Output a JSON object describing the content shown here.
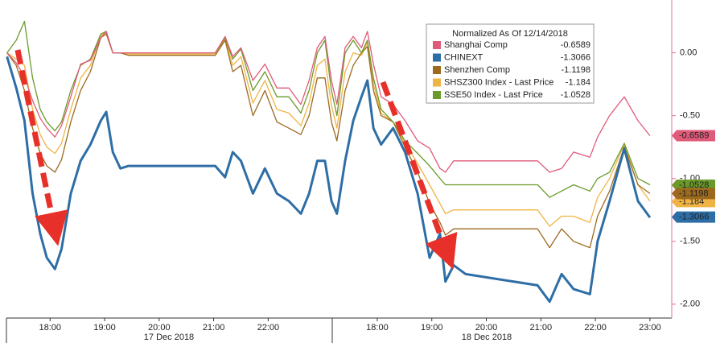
{
  "chart_data": {
    "type": "line",
    "legend_title": "Normalized As Of 12/14/2018",
    "date_labels": [
      "17 Dec 2018",
      "18 Dec 2018"
    ],
    "x": [
      -0.79,
      -0.62,
      -0.47,
      -0.32,
      -0.18,
      -0.06,
      0.09,
      0.21,
      0.38,
      0.56,
      0.74,
      0.93,
      1.03,
      1.15,
      1.29,
      1.44,
      3.03,
      3.21,
      3.35,
      3.5,
      3.72,
      3.94,
      4.16,
      4.38,
      4.6,
      4.75,
      4.9,
      5.04,
      5.16,
      5.26,
      5.41,
      5.56,
      5.71,
      5.82,
      5.93,
      6.07,
      6.29,
      6.51,
      6.74,
      6.96,
      7.15,
      7.25,
      7.4,
      7.62,
      8.94,
      9.16,
      9.38,
      9.6,
      9.9,
      10.04,
      10.26,
      10.53,
      10.78,
      11.0
    ],
    "xlim": [
      -0.8,
      11.4
    ],
    "xticks": [
      {
        "value": 0,
        "label": "18:00"
      },
      {
        "value": 1,
        "label": "19:00"
      },
      {
        "value": 2,
        "label": "20:00"
      },
      {
        "value": 3,
        "label": "21:00"
      },
      {
        "value": 4,
        "label": "22:00"
      },
      {
        "value": 6,
        "label": "18:00"
      },
      {
        "value": 7,
        "label": "19:00"
      },
      {
        "value": 8,
        "label": "20:00"
      },
      {
        "value": 9,
        "label": "21:00"
      },
      {
        "value": 10,
        "label": "22:00"
      },
      {
        "value": 11,
        "label": "23:00"
      }
    ],
    "ylim": [
      -2.11,
      0.42
    ],
    "yticks": [
      {
        "value": 0,
        "label": "0.00"
      },
      {
        "value": -0.5,
        "label": "-0.50"
      },
      {
        "value": -1,
        "label": "-1.00"
      },
      {
        "value": -1.5,
        "label": "-1.50"
      },
      {
        "value": -2,
        "label": "-2.00"
      }
    ],
    "series": [
      {
        "name": "Shanghai Comp",
        "color": "#e05a7a",
        "last": -0.6589,
        "values": [
          0.0,
          -0.08,
          -0.19,
          -0.38,
          -0.52,
          -0.6,
          -0.67,
          -0.58,
          -0.35,
          -0.09,
          -0.06,
          0.12,
          0.17,
          0.0,
          0.0,
          0.0,
          0.0,
          0.13,
          -0.03,
          0.04,
          -0.22,
          -0.09,
          -0.28,
          -0.28,
          -0.41,
          -0.22,
          0.04,
          0.13,
          -0.22,
          -0.41,
          0.04,
          0.13,
          0.04,
          0.17,
          -0.09,
          -0.35,
          -0.41,
          -0.54,
          -0.7,
          -0.76,
          -0.92,
          -0.95,
          -0.86,
          -0.86,
          -0.86,
          -0.95,
          -0.92,
          -0.79,
          -0.83,
          -0.67,
          -0.5,
          -0.35,
          -0.54,
          -0.66
        ]
      },
      {
        "name": "CHINEXT",
        "color": "#2e6ea6",
        "last": -1.3066,
        "values": [
          -0.03,
          -0.28,
          -0.54,
          -1.12,
          -1.44,
          -1.63,
          -1.72,
          -1.56,
          -1.12,
          -0.86,
          -0.73,
          -0.54,
          -0.47,
          -0.79,
          -0.92,
          -0.9,
          -0.9,
          -0.99,
          -0.79,
          -0.86,
          -1.12,
          -0.92,
          -1.12,
          -1.18,
          -1.28,
          -1.12,
          -0.86,
          -0.86,
          -1.18,
          -1.28,
          -0.86,
          -0.54,
          -0.35,
          -0.22,
          -0.6,
          -0.73,
          -0.6,
          -0.79,
          -1.12,
          -1.63,
          -1.44,
          -1.82,
          -1.69,
          -1.76,
          -1.85,
          -1.98,
          -1.76,
          -1.88,
          -1.92,
          -1.5,
          -1.18,
          -0.76,
          -1.18,
          -1.31
        ]
      },
      {
        "name": "Shenzhen Comp",
        "color": "#9c6a1e",
        "last": -1.1198,
        "values": [
          0.0,
          -0.1,
          -0.3,
          -0.6,
          -0.8,
          -0.9,
          -0.95,
          -0.85,
          -0.55,
          -0.3,
          -0.15,
          0.12,
          0.15,
          0.0,
          0.0,
          -0.02,
          -0.02,
          0.1,
          -0.15,
          -0.1,
          -0.5,
          -0.3,
          -0.55,
          -0.6,
          -0.65,
          -0.5,
          -0.2,
          -0.2,
          -0.55,
          -0.7,
          -0.3,
          -0.1,
          0.0,
          0.05,
          -0.3,
          -0.5,
          -0.55,
          -0.75,
          -0.95,
          -1.2,
          -1.35,
          -1.45,
          -1.4,
          -1.4,
          -1.4,
          -1.55,
          -1.4,
          -1.5,
          -1.55,
          -1.3,
          -1.1,
          -0.75,
          -1.05,
          -1.12
        ]
      },
      {
        "name": "SHSZ300 Index - Last Price",
        "color": "#f0b445",
        "last": -1.184,
        "values": [
          0.0,
          -0.05,
          -0.1,
          -0.45,
          -0.65,
          -0.75,
          -0.8,
          -0.72,
          -0.45,
          -0.2,
          -0.1,
          0.14,
          0.16,
          0.0,
          0.0,
          -0.01,
          -0.01,
          0.11,
          -0.1,
          -0.03,
          -0.4,
          -0.22,
          -0.45,
          -0.48,
          -0.58,
          -0.4,
          -0.1,
          -0.05,
          -0.42,
          -0.6,
          -0.15,
          0.0,
          -0.02,
          0.08,
          -0.25,
          -0.48,
          -0.55,
          -0.72,
          -0.88,
          -1.05,
          -1.2,
          -1.28,
          -1.25,
          -1.25,
          -1.25,
          -1.38,
          -1.3,
          -1.3,
          -1.35,
          -1.15,
          -1.0,
          -0.73,
          -1.05,
          -1.18
        ]
      },
      {
        "name": "SSE50 Index - Last Price",
        "color": "#6a9a2a",
        "last": -1.0528,
        "values": [
          0.0,
          0.1,
          0.25,
          -0.2,
          -0.45,
          -0.55,
          -0.62,
          -0.55,
          -0.3,
          -0.1,
          -0.05,
          0.15,
          0.17,
          0.0,
          0.0,
          0.0,
          0.0,
          0.12,
          -0.05,
          0.03,
          -0.3,
          -0.15,
          -0.35,
          -0.35,
          -0.48,
          -0.3,
          0.0,
          0.1,
          -0.3,
          -0.5,
          0.0,
          0.1,
          0.0,
          0.1,
          -0.2,
          -0.45,
          -0.55,
          -0.7,
          -0.8,
          -0.9,
          -1.0,
          -1.05,
          -1.05,
          -1.05,
          -1.05,
          -1.15,
          -1.1,
          -1.05,
          -1.1,
          -1.0,
          -0.95,
          -0.72,
          -1.0,
          -1.05
        ]
      }
    ]
  }
}
